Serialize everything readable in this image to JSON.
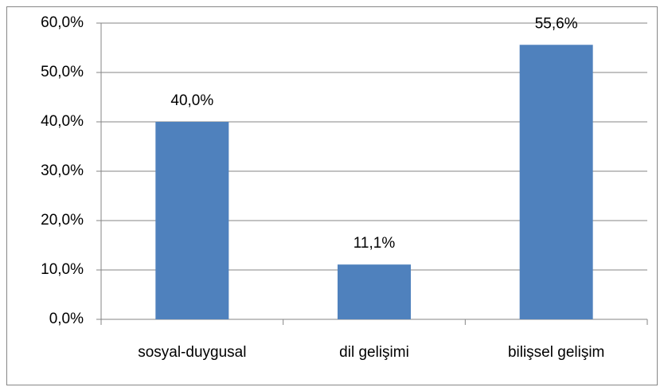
{
  "chart_data": {
    "type": "bar",
    "categories": [
      "sosyal-duygusal",
      "dil gelişimi",
      "bilişsel gelişim"
    ],
    "values": [
      40.0,
      11.1,
      55.6
    ],
    "value_labels": [
      "40,0%",
      "11,1%",
      "55,6%"
    ],
    "color": "#4f81bd",
    "ylim": [
      0,
      60
    ],
    "yticks": [
      {
        "value": 0,
        "label": "0,0%"
      },
      {
        "value": 10,
        "label": "10,0%"
      },
      {
        "value": 20,
        "label": "20,0%"
      },
      {
        "value": 30,
        "label": "30,0%"
      },
      {
        "value": 40,
        "label": "40,0%"
      },
      {
        "value": 50,
        "label": "50,0%"
      },
      {
        "value": 60,
        "label": "60,0%"
      }
    ],
    "grid": true
  }
}
